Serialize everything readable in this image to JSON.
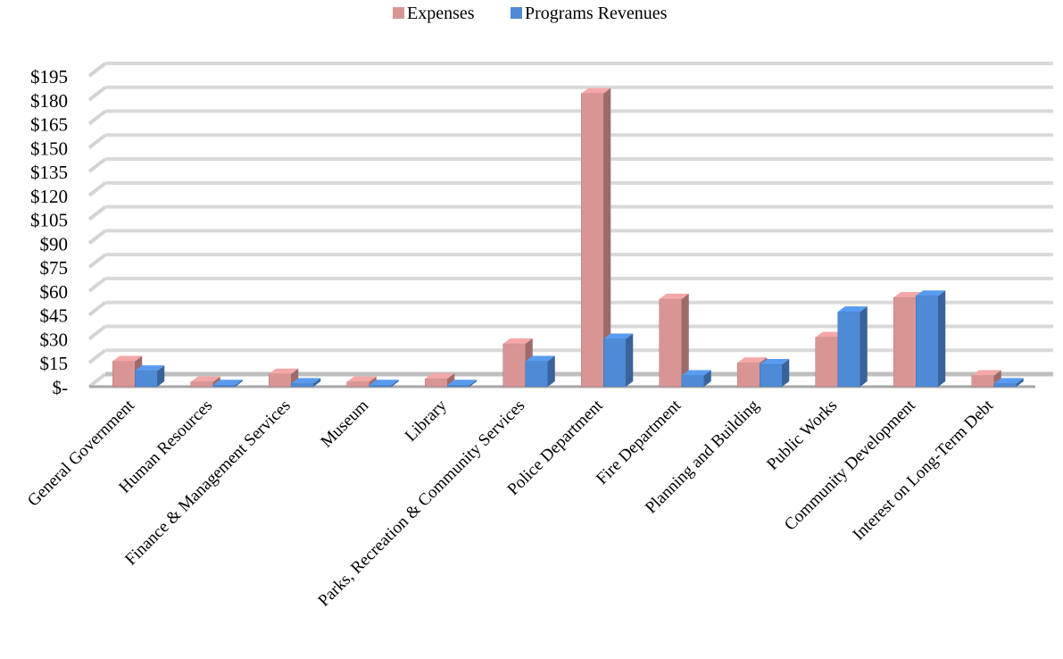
{
  "chart_data": {
    "type": "bar",
    "style": "3d-clustered-column",
    "categories": [
      "General Government",
      "Human Resources",
      "Finance & Management Services",
      "Museum",
      "Library",
      "Parks, Recreation & Community Services",
      "Police Department",
      "Fire Department",
      "Planning and Building",
      "Public Works",
      "Community Development",
      "Interest on Long-Term Debt"
    ],
    "series": [
      {
        "name": "Expenses",
        "color": "#d99594",
        "values": [
          16,
          3,
          8,
          3,
          5,
          27,
          184,
          55,
          15,
          31,
          56,
          7
        ]
      },
      {
        "name": "Programs Revenues",
        "color": "#4f8ad6",
        "values": [
          10,
          1,
          2,
          1,
          1,
          16,
          30,
          7,
          14,
          47,
          57,
          2
        ]
      }
    ],
    "ylim": [
      0,
      195
    ],
    "yticks": [
      "$-",
      "$15",
      "$30",
      "$45",
      "$60",
      "$75",
      "$90",
      "$105",
      "$120",
      "$135",
      "$150",
      "$165",
      "$180",
      "$195"
    ],
    "grid": true,
    "legend_position": "top"
  }
}
